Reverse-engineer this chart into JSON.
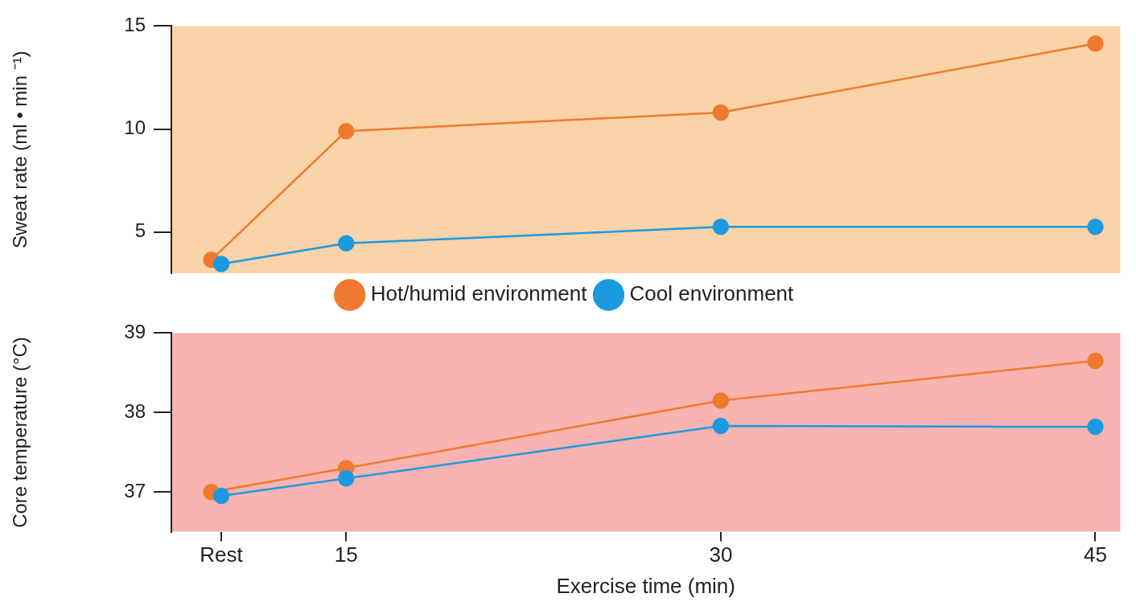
{
  "chart_data": [
    {
      "type": "line",
      "ylabel": "Sweat rate (ml • min ⁻¹)",
      "x": [
        10,
        15,
        30,
        45
      ],
      "xlim": [
        8,
        46
      ],
      "ylim": [
        3,
        15
      ],
      "yticks": [
        5,
        10,
        15
      ],
      "tick_labels": "y",
      "grid": false,
      "legend": "bottom",
      "marker": "circle",
      "series": [
        {
          "name": "Hot/humid environment",
          "color": "#ef7a2e",
          "x": [
            9.6,
            15,
            30,
            45
          ],
          "values": [
            3.65,
            9.9,
            10.8,
            14.15
          ]
        },
        {
          "name": "Cool environment",
          "color": "#1b9ae0",
          "values": [
            3.45,
            4.45,
            5.25,
            5.25
          ]
        }
      ]
    },
    {
      "type": "line",
      "ylabel": "Core temperature (°C)",
      "xlabel": "Exercise time (min)",
      "x": [
        10,
        15,
        30,
        45
      ],
      "xlim": [
        8,
        46
      ],
      "xticks": [
        {
          "value": 10,
          "label": "Rest"
        },
        15,
        30,
        45
      ],
      "ylim": [
        36.5,
        39
      ],
      "yticks": [
        37,
        38,
        39
      ],
      "grid": false,
      "marker": "circle",
      "series": [
        {
          "color": "#ef7a2e",
          "x": [
            9.6,
            15,
            30,
            45
          ],
          "values": [
            37.0,
            37.3,
            38.15,
            38.65
          ]
        },
        {
          "color": "#1b9ae0",
          "values": [
            36.95,
            37.17,
            37.83,
            37.82
          ]
        }
      ]
    }
  ]
}
